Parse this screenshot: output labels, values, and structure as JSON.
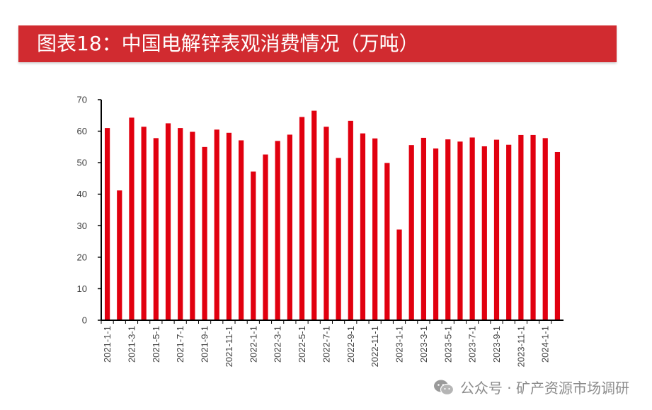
{
  "header": {
    "title": "图表18：中国电解锌表观消费情况（万吨）"
  },
  "watermark": {
    "text": "公众号 · 矿产资源市场调研",
    "icon": "wechat-icon"
  },
  "colors": {
    "title_bar": "#d12b30",
    "bar": "#e1000f",
    "axis": "#000000",
    "text": "#404040"
  },
  "chart_data": {
    "type": "bar",
    "title": "",
    "xlabel": "",
    "ylabel": "",
    "ylim": [
      0,
      70
    ],
    "yticks": [
      0,
      10,
      20,
      30,
      40,
      50,
      60,
      70
    ],
    "grid": false,
    "legend": "none",
    "categories": [
      "2021-1-1",
      "2021-2-1",
      "2021-3-1",
      "2021-4-1",
      "2021-5-1",
      "2021-6-1",
      "2021-7-1",
      "2021-8-1",
      "2021-9-1",
      "2021-10-1",
      "2021-11-1",
      "2021-12-1",
      "2022-1-1",
      "2022-2-1",
      "2022-3-1",
      "2022-4-1",
      "2022-5-1",
      "2022-6-1",
      "2022-7-1",
      "2022-8-1",
      "2022-9-1",
      "2022-10-1",
      "2022-11-1",
      "2022-12-1",
      "2023-1-1",
      "2023-2-1",
      "2023-3-1",
      "2023-4-1",
      "2023-5-1",
      "2023-6-1",
      "2023-7-1",
      "2023-8-1",
      "2023-9-1",
      "2023-10-1",
      "2023-11-1",
      "2023-12-1",
      "2024-1-1",
      "2024-2-1"
    ],
    "xtick_labels": [
      "2021-1-1",
      "2021-3-1",
      "2021-5-1",
      "2021-7-1",
      "2021-9-1",
      "2021-11-1",
      "2022-1-1",
      "2022-3-1",
      "2022-5-1",
      "2022-7-1",
      "2022-9-1",
      "2022-11-1",
      "2023-1-1",
      "2023-3-1",
      "2023-5-1",
      "2023-7-1",
      "2023-9-1",
      "2023-11-1",
      "2024-1-1"
    ],
    "values": [
      61.0,
      41.2,
      64.3,
      61.4,
      57.8,
      62.5,
      61.0,
      59.8,
      55.0,
      60.5,
      59.5,
      57.1,
      47.2,
      52.6,
      56.9,
      58.9,
      64.5,
      66.5,
      61.4,
      51.5,
      63.3,
      59.3,
      57.7,
      49.9,
      28.8,
      55.6,
      57.9,
      54.5,
      57.4,
      56.7,
      58.0,
      55.2,
      57.3,
      55.7,
      58.8,
      58.8,
      57.8,
      53.4
    ]
  }
}
